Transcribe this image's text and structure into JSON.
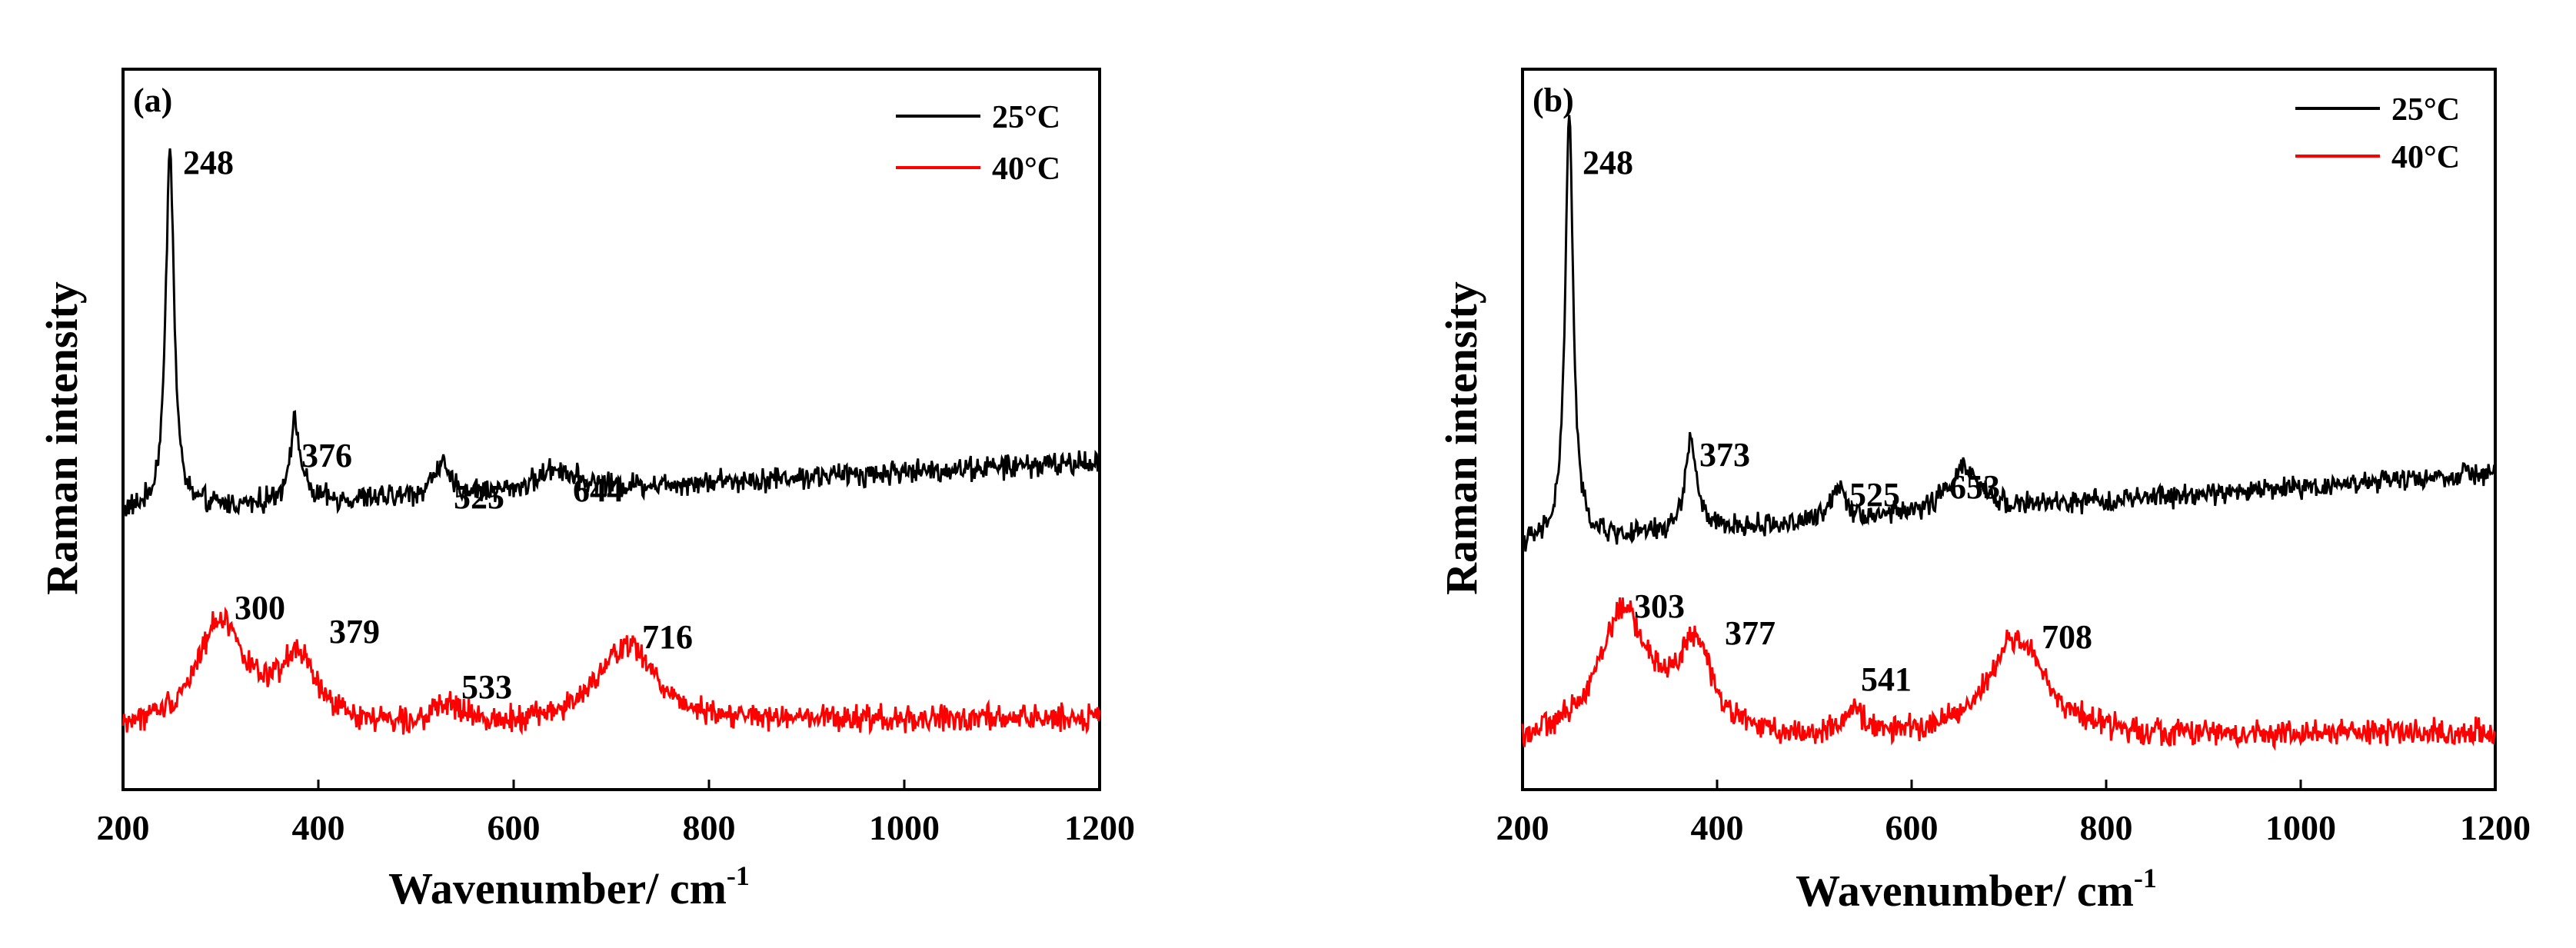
{
  "chart_data": [
    {
      "type": "line",
      "panel_label": "(a)",
      "xlabel": "Wavenumber/ cm",
      "xlabel_superscript": "-1",
      "ylabel": "Raman intensity",
      "xlim": [
        200,
        1200
      ],
      "ylim": [
        0,
        100
      ],
      "yticks_shown": false,
      "xticks": [
        200,
        400,
        600,
        800,
        1000,
        1200
      ],
      "legend_position": "top-right",
      "legend": [
        "25°C",
        "40°C"
      ],
      "series": [
        {
          "name": "25°C",
          "color": "#000000",
          "baseline": 38.5,
          "slope_per_1000": 7,
          "noise": 1.3,
          "peaks": [
            {
              "x": 248,
              "height": 51,
              "width": 5
            },
            {
              "x": 376,
              "height": 11,
              "width": 7
            },
            {
              "x": 525,
              "height": 4.5,
              "width": 9
            },
            {
              "x": 644,
              "height": 3,
              "width": 22
            }
          ],
          "peak_labels": [
            "248",
            "376",
            "525",
            "644"
          ]
        },
        {
          "name": "40°C",
          "color": "#ff0000",
          "baseline": 8,
          "slope_per_1000": 2,
          "noise": 1.4,
          "peaks": [
            {
              "x": 300,
              "height": 15,
              "width": 30
            },
            {
              "x": 379,
              "height": 9,
              "width": 22
            },
            {
              "x": 533,
              "height": 2.5,
              "width": 15
            },
            {
              "x": 716,
              "height": 11,
              "width": 35
            }
          ],
          "peak_labels": [
            "300",
            "379",
            "533",
            "716"
          ]
        }
      ]
    },
    {
      "type": "line",
      "panel_label": "(b)",
      "xlabel": "Wavenumber/ cm",
      "xlabel_superscript": "-1",
      "ylabel": "Raman intensity",
      "xlim": [
        200,
        1200
      ],
      "ylim": [
        0,
        100
      ],
      "yticks_shown": false,
      "xticks": [
        200,
        400,
        600,
        800,
        1000,
        1200
      ],
      "legend_position": "top-right",
      "legend": [
        "25°C",
        "40°C"
      ],
      "series": [
        {
          "name": "25°C",
          "color": "#000000",
          "baseline": 34,
          "slope_per_1000": 10,
          "noise": 1.2,
          "peaks": [
            {
              "x": 248,
              "height": 59,
              "width": 5
            },
            {
              "x": 373,
              "height": 13,
              "width": 7
            },
            {
              "x": 525,
              "height": 5,
              "width": 9
            },
            {
              "x": 653,
              "height": 6,
              "width": 20
            }
          ],
          "peak_labels": [
            "248",
            "373",
            "525",
            "653"
          ]
        },
        {
          "name": "40°C",
          "color": "#ff0000",
          "baseline": 6,
          "slope_per_1000": 2,
          "noise": 1.4,
          "peaks": [
            {
              "x": 303,
              "height": 18,
              "width": 32
            },
            {
              "x": 377,
              "height": 12,
              "width": 22
            },
            {
              "x": 541,
              "height": 3,
              "width": 15
            },
            {
              "x": 708,
              "height": 14,
              "width": 35
            }
          ],
          "peak_labels": [
            "303",
            "377",
            "541",
            "708"
          ]
        }
      ]
    }
  ]
}
